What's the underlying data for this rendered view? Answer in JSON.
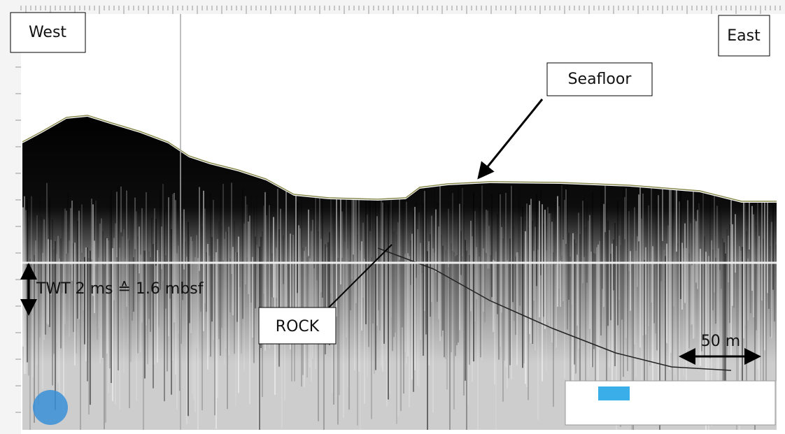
{
  "labels": {
    "west": "West",
    "east": "East",
    "seafloor": "Seafloor",
    "rock": "ROCK",
    "twt": "TWT 2 ms ≙ 1.6 mbsf",
    "scale": "50 m"
  }
}
